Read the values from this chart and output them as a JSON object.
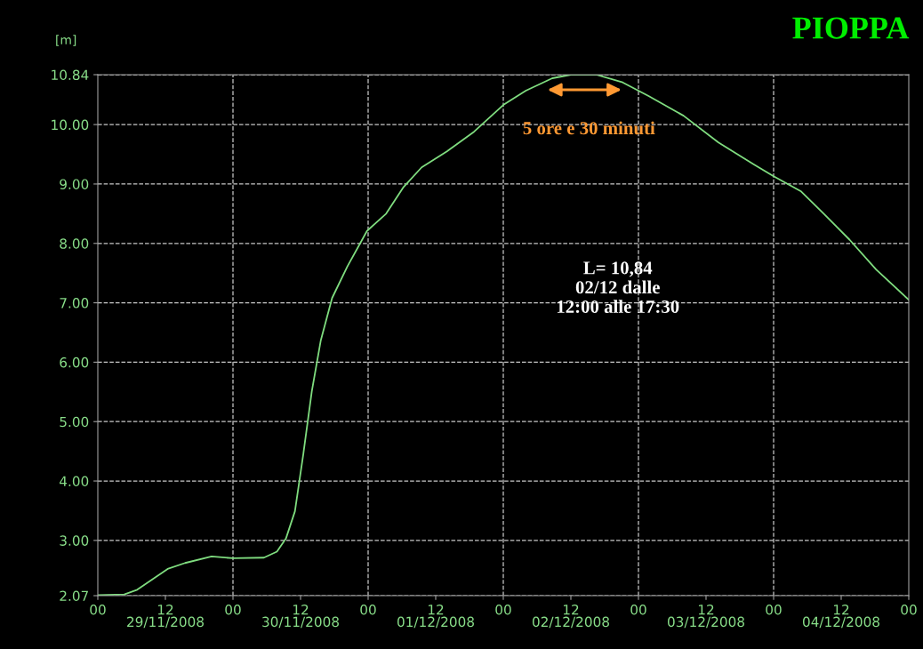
{
  "chart_data": {
    "type": "line",
    "title": "PIOPPA",
    "ylabel": "[m]",
    "x": [
      "2008-11-29T00:00",
      "2008-11-29T04:42",
      "2008-11-29T07:00",
      "2008-11-29T12:24",
      "2008-11-29T15:30",
      "2008-11-29T20:12",
      "2008-11-30T00:00",
      "2008-11-30T05:30",
      "2008-11-30T07:48",
      "2008-11-30T09:24",
      "2008-11-30T11:00",
      "2008-11-30T12:30",
      "2008-11-30T14:00",
      "2008-11-30T15:36",
      "2008-11-30T17:36",
      "2008-11-30T20:18",
      "2008-11-30T23:48",
      "2008-12-01T03:12",
      "2008-12-01T06:18",
      "2008-12-01T09:30",
      "2008-12-01T14:00",
      "2008-12-01T18:48",
      "2008-12-02T00:00",
      "2008-12-02T04:00",
      "2008-12-02T08:42",
      "2008-12-02T12:00",
      "2008-12-02T16:30",
      "2008-12-02T21:12",
      "2008-12-03T01:48",
      "2008-12-03T08:00",
      "2008-12-03T14:12",
      "2008-12-03T20:30",
      "2008-12-04T00:00",
      "2008-12-04T04:48",
      "2008-12-04T08:54",
      "2008-12-04T13:30",
      "2008-12-04T18:12",
      "2008-12-05T00:00"
    ],
    "series": [
      {
        "color": "#7fdc7f",
        "values": [
          2.08,
          2.09,
          2.17,
          2.52,
          2.62,
          2.73,
          2.7,
          2.71,
          2.81,
          3.03,
          3.49,
          4.46,
          5.51,
          6.37,
          7.08,
          7.61,
          8.21,
          8.5,
          8.95,
          9.28,
          9.55,
          9.88,
          10.33,
          10.57,
          10.78,
          10.84,
          10.84,
          10.71,
          10.48,
          10.15,
          9.7,
          9.33,
          9.13,
          8.88,
          8.5,
          8.06,
          7.56,
          7.05
        ]
      }
    ],
    "xlim": [
      "2008-11-29T00:00",
      "2008-12-05T00:00"
    ],
    "xticks": [
      {
        "value": "2008-11-29T00:00",
        "label": "00"
      },
      {
        "value": "2008-11-29T12:00",
        "label": "12\n29/11/2008"
      },
      {
        "value": "2008-11-30T00:00",
        "label": "00"
      },
      {
        "value": "2008-11-30T12:00",
        "label": "12\n30/11/2008"
      },
      {
        "value": "2008-12-01T00:00",
        "label": "00"
      },
      {
        "value": "2008-12-01T12:00",
        "label": "12\n01/12/2008"
      },
      {
        "value": "2008-12-02T00:00",
        "label": "00"
      },
      {
        "value": "2008-12-02T12:00",
        "label": "12\n02/12/2008"
      },
      {
        "value": "2008-12-03T00:00",
        "label": "00"
      },
      {
        "value": "2008-12-03T12:00",
        "label": "12\n03/12/2008"
      },
      {
        "value": "2008-12-04T00:00",
        "label": "00"
      },
      {
        "value": "2008-12-04T12:00",
        "label": "12\n04/12/2008"
      },
      {
        "value": "2008-12-05T00:00",
        "label": "00"
      }
    ],
    "ylim": [
      2.07,
      10.84
    ],
    "yticks": [
      {
        "value": 2.07,
        "label": "2.07"
      },
      {
        "value": 3,
        "label": "3.00"
      },
      {
        "value": 4,
        "label": "4.00"
      },
      {
        "value": 5,
        "label": "5.00"
      },
      {
        "value": 6,
        "label": "6.00"
      },
      {
        "value": 7,
        "label": "7.00"
      },
      {
        "value": 8,
        "label": "8.00"
      },
      {
        "value": 9,
        "label": "9.00"
      },
      {
        "value": 10,
        "label": "10.00"
      },
      {
        "value": 10.84,
        "label": "10.84"
      }
    ],
    "grid": "y",
    "ref_lines": [
      {
        "axis": "x",
        "value": "2008-11-30T00:00",
        "line_style": "dashed",
        "color": "#c8c8c8"
      },
      {
        "axis": "x",
        "value": "2008-12-01T00:00",
        "line_style": "dashed",
        "color": "#c8c8c8"
      },
      {
        "axis": "x",
        "value": "2008-12-02T00:00",
        "line_style": "dashed",
        "color": "#c8c8c8"
      },
      {
        "axis": "x",
        "value": "2008-12-03T00:00",
        "line_style": "dashed",
        "color": "#c8c8c8"
      },
      {
        "axis": "x",
        "value": "2008-12-04T00:00",
        "line_style": "dashed",
        "color": "#c8c8c8"
      }
    ],
    "annotations": [
      "5 ore e 30 minuti",
      "L= 10,84\n02/12 dalle\n12:00 alle 17:30"
    ],
    "legend": false,
    "marker": "none",
    "line_style": "solid"
  }
}
